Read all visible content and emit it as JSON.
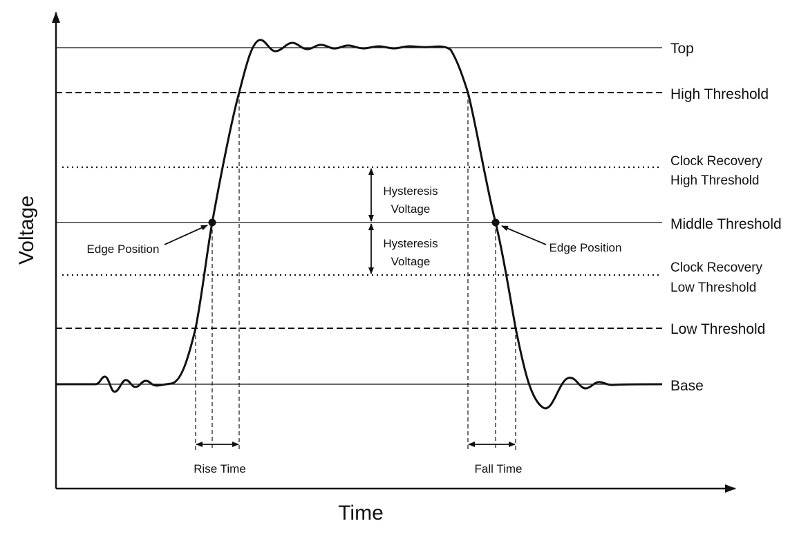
{
  "axes": {
    "y_label": "Voltage",
    "x_label": "Time"
  },
  "levels": {
    "top": "Top",
    "high_threshold": "High Threshold",
    "clock_recovery_high_line1": "Clock Recovery",
    "clock_recovery_high_line2": "High Threshold",
    "middle_threshold": "Middle Threshold",
    "clock_recovery_low_line1": "Clock Recovery",
    "clock_recovery_low_line2": "Low Threshold",
    "low_threshold": "Low Threshold",
    "base": "Base"
  },
  "annotations": {
    "hysteresis_upper_line1": "Hysteresis",
    "hysteresis_upper_line2": "Voltage",
    "hysteresis_lower_line1": "Hysteresis",
    "hysteresis_lower_line2": "Voltage",
    "edge_position_left": "Edge Position",
    "edge_position_right": "Edge Position",
    "rise_time": "Rise Time",
    "fall_time": "Fall Time"
  }
}
